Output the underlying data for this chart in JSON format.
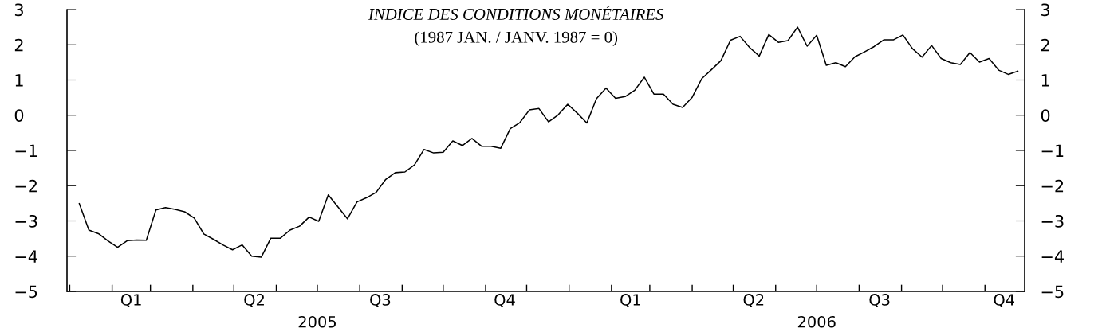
{
  "chart_data": {
    "type": "line",
    "title": "INDICE DES CONDITIONS MONÉTAIRES",
    "subtitle": "(1987 JAN. / JANV. 1987 = 0)",
    "x": [
      "2005-01-08",
      "2005-01-15",
      "2005-01-22",
      "2005-01-29",
      "2005-02-05",
      "2005-02-12",
      "2005-02-19",
      "2005-02-26",
      "2005-03-05",
      "2005-03-12",
      "2005-03-19",
      "2005-03-26",
      "2005-04-02",
      "2005-04-09",
      "2005-04-16",
      "2005-04-23",
      "2005-04-30",
      "2005-05-07",
      "2005-05-14",
      "2005-05-21",
      "2005-05-28",
      "2005-06-04",
      "2005-06-11",
      "2005-06-18",
      "2005-06-25",
      "2005-07-02",
      "2005-07-09",
      "2005-07-16",
      "2005-07-23",
      "2005-07-30",
      "2005-08-06",
      "2005-08-13",
      "2005-08-20",
      "2005-08-27",
      "2005-09-03",
      "2005-09-10",
      "2005-09-17",
      "2005-09-24",
      "2005-10-01",
      "2005-10-08",
      "2005-10-15",
      "2005-10-22",
      "2005-10-29",
      "2005-11-05",
      "2005-11-12",
      "2005-11-19",
      "2005-11-26",
      "2005-12-03",
      "2005-12-10",
      "2005-12-17",
      "2005-12-24",
      "2005-12-31",
      "2006-01-07",
      "2006-01-14",
      "2006-01-21",
      "2006-01-28",
      "2006-02-04",
      "2006-02-11",
      "2006-02-18",
      "2006-02-25",
      "2006-03-04",
      "2006-03-11",
      "2006-03-18",
      "2006-03-25",
      "2006-04-01",
      "2006-04-08",
      "2006-04-15",
      "2006-04-22",
      "2006-04-29",
      "2006-05-06",
      "2006-05-13",
      "2006-05-20",
      "2006-05-27",
      "2006-06-03",
      "2006-06-10",
      "2006-06-17",
      "2006-06-24",
      "2006-07-01",
      "2006-07-08",
      "2006-07-15",
      "2006-07-22",
      "2006-07-29",
      "2006-08-05",
      "2006-08-12",
      "2006-08-19",
      "2006-08-26",
      "2006-09-02",
      "2006-09-09",
      "2006-09-16",
      "2006-09-23",
      "2006-09-30",
      "2006-10-07",
      "2006-10-14",
      "2006-10-21",
      "2006-10-28",
      "2006-11-04",
      "2006-11-11",
      "2006-11-18",
      "2006-11-25"
    ],
    "series": [
      {
        "color": "#000000",
        "values": [
          -2.51,
          -3.26,
          -3.36,
          -3.57,
          -3.75,
          -3.56,
          -3.54,
          -3.55,
          -2.69,
          -2.62,
          -2.67,
          -2.74,
          -2.92,
          -3.37,
          -3.52,
          -3.68,
          -3.82,
          -3.68,
          -4.0,
          -4.03,
          -3.49,
          -3.49,
          -3.26,
          -3.15,
          -2.89,
          -3.01,
          -2.26,
          -2.6,
          -2.94,
          -2.46,
          -2.34,
          -2.19,
          -1.82,
          -1.63,
          -1.61,
          -1.41,
          -0.97,
          -1.07,
          -1.05,
          -0.73,
          -0.86,
          -0.66,
          -0.88,
          -0.88,
          -0.94,
          -0.38,
          -0.21,
          0.15,
          0.19,
          -0.19,
          0.01,
          0.31,
          0.06,
          -0.22,
          0.47,
          0.77,
          0.48,
          0.53,
          0.71,
          1.08,
          0.6,
          0.6,
          0.31,
          0.22,
          0.51,
          1.04,
          1.29,
          1.55,
          2.13,
          2.24,
          1.92,
          1.68,
          2.29,
          2.07,
          2.12,
          2.5,
          1.96,
          2.27,
          1.42,
          1.49,
          1.38,
          1.66,
          1.8,
          1.95,
          2.14,
          2.14,
          2.28,
          1.89,
          1.65,
          1.98,
          1.61,
          1.49,
          1.44,
          1.78,
          1.51,
          1.61,
          1.28,
          1.16,
          1.25
        ]
      }
    ],
    "xlim": [
      "2004-12-30",
      "2006-11-30"
    ],
    "xticks": [
      {
        "value": "2005-01-01",
        "label": null
      },
      {
        "value": "2005-02-01",
        "label": null
      },
      {
        "value": "2005-03-01",
        "label": null
      },
      {
        "value": "2005-04-01",
        "label": null
      },
      {
        "value": "2005-05-01",
        "label": null
      },
      {
        "value": "2005-06-01",
        "label": null
      },
      {
        "value": "2005-07-01",
        "label": null
      },
      {
        "value": "2005-08-01",
        "label": null
      },
      {
        "value": "2005-09-01",
        "label": null
      },
      {
        "value": "2005-10-01",
        "label": null
      },
      {
        "value": "2005-11-01",
        "label": null
      },
      {
        "value": "2005-12-01",
        "label": null
      },
      {
        "value": "2006-01-01",
        "label": null
      },
      {
        "value": "2006-02-01",
        "label": null
      },
      {
        "value": "2006-03-01",
        "label": null
      },
      {
        "value": "2006-04-01",
        "label": null
      },
      {
        "value": "2006-05-01",
        "label": null
      },
      {
        "value": "2006-06-01",
        "label": null
      },
      {
        "value": "2006-07-01",
        "label": null
      },
      {
        "value": "2006-08-01",
        "label": null
      },
      {
        "value": "2006-09-01",
        "label": null
      },
      {
        "value": "2006-10-01",
        "label": null
      },
      {
        "value": "2006-11-01",
        "label": null
      },
      {
        "value": "2005-02-15",
        "label": "Q1"
      },
      {
        "value": "2005-05-16",
        "label": "Q2"
      },
      {
        "value": "2005-08-16",
        "label": "Q3"
      },
      {
        "value": "2005-11-15",
        "label": "Q4"
      },
      {
        "value": "2006-02-15",
        "label": "Q1"
      },
      {
        "value": "2006-05-16",
        "label": "Q2"
      },
      {
        "value": "2006-08-16",
        "label": "Q3"
      },
      {
        "value": "2006-11-15",
        "label": "Q4"
      }
    ],
    "annotations": [
      "2005",
      "2006"
    ],
    "ylim": [
      -5,
      3
    ],
    "yticks": [
      {
        "value": -5,
        "label": "−5"
      },
      {
        "value": -4,
        "label": "−4"
      },
      {
        "value": -3,
        "label": "−3"
      },
      {
        "value": -2,
        "label": "−2"
      },
      {
        "value": -1,
        "label": "−1"
      },
      {
        "value": 0,
        "label": "0"
      },
      {
        "value": 1,
        "label": "1"
      },
      {
        "value": 2,
        "label": "2"
      },
      {
        "value": 3,
        "label": "3"
      }
    ],
    "y2lim": [
      -5,
      3
    ],
    "y2ticks": [
      {
        "value": -5,
        "label": "−5"
      },
      {
        "value": -4,
        "label": "−4"
      },
      {
        "value": -3,
        "label": "−3"
      },
      {
        "value": -2,
        "label": "−2"
      },
      {
        "value": -1,
        "label": "−1"
      },
      {
        "value": 0,
        "label": "0"
      },
      {
        "value": 1,
        "label": "1"
      },
      {
        "value": 2,
        "label": "2"
      },
      {
        "value": 3,
        "label": "3"
      }
    ],
    "grid": false,
    "marker": "none",
    "line_style": "solid"
  }
}
